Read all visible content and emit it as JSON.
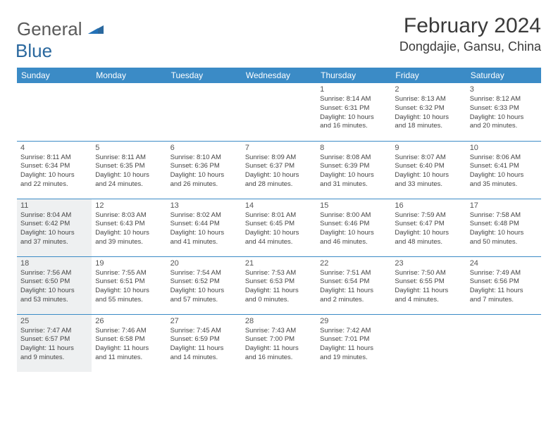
{
  "logo": {
    "gray": "General",
    "blue": "Blue"
  },
  "header": {
    "title": "February 2024",
    "location": "Dongdajie, Gansu, China"
  },
  "colors": {
    "header_bg": "#3b8bc6",
    "header_text": "#ffffff",
    "shaded_bg": "#eef0f1",
    "border": "#3b8bc6",
    "logo_gray": "#5a5a5a",
    "logo_blue": "#2a689e"
  },
  "weekdays": [
    "Sunday",
    "Monday",
    "Tuesday",
    "Wednesday",
    "Thursday",
    "Friday",
    "Saturday"
  ],
  "weeks": [
    [
      {
        "blank": true
      },
      {
        "blank": true
      },
      {
        "blank": true
      },
      {
        "blank": true
      },
      {
        "num": "1",
        "sunrise": "Sunrise: 8:14 AM",
        "sunset": "Sunset: 6:31 PM",
        "day1": "Daylight: 10 hours",
        "day2": "and 16 minutes."
      },
      {
        "num": "2",
        "sunrise": "Sunrise: 8:13 AM",
        "sunset": "Sunset: 6:32 PM",
        "day1": "Daylight: 10 hours",
        "day2": "and 18 minutes."
      },
      {
        "num": "3",
        "sunrise": "Sunrise: 8:12 AM",
        "sunset": "Sunset: 6:33 PM",
        "day1": "Daylight: 10 hours",
        "day2": "and 20 minutes."
      }
    ],
    [
      {
        "num": "4",
        "sunrise": "Sunrise: 8:11 AM",
        "sunset": "Sunset: 6:34 PM",
        "day1": "Daylight: 10 hours",
        "day2": "and 22 minutes."
      },
      {
        "num": "5",
        "sunrise": "Sunrise: 8:11 AM",
        "sunset": "Sunset: 6:35 PM",
        "day1": "Daylight: 10 hours",
        "day2": "and 24 minutes."
      },
      {
        "num": "6",
        "sunrise": "Sunrise: 8:10 AM",
        "sunset": "Sunset: 6:36 PM",
        "day1": "Daylight: 10 hours",
        "day2": "and 26 minutes."
      },
      {
        "num": "7",
        "sunrise": "Sunrise: 8:09 AM",
        "sunset": "Sunset: 6:37 PM",
        "day1": "Daylight: 10 hours",
        "day2": "and 28 minutes."
      },
      {
        "num": "8",
        "sunrise": "Sunrise: 8:08 AM",
        "sunset": "Sunset: 6:39 PM",
        "day1": "Daylight: 10 hours",
        "day2": "and 31 minutes."
      },
      {
        "num": "9",
        "sunrise": "Sunrise: 8:07 AM",
        "sunset": "Sunset: 6:40 PM",
        "day1": "Daylight: 10 hours",
        "day2": "and 33 minutes."
      },
      {
        "num": "10",
        "sunrise": "Sunrise: 8:06 AM",
        "sunset": "Sunset: 6:41 PM",
        "day1": "Daylight: 10 hours",
        "day2": "and 35 minutes."
      }
    ],
    [
      {
        "num": "11",
        "shaded": true,
        "sunrise": "Sunrise: 8:04 AM",
        "sunset": "Sunset: 6:42 PM",
        "day1": "Daylight: 10 hours",
        "day2": "and 37 minutes."
      },
      {
        "num": "12",
        "sunrise": "Sunrise: 8:03 AM",
        "sunset": "Sunset: 6:43 PM",
        "day1": "Daylight: 10 hours",
        "day2": "and 39 minutes."
      },
      {
        "num": "13",
        "sunrise": "Sunrise: 8:02 AM",
        "sunset": "Sunset: 6:44 PM",
        "day1": "Daylight: 10 hours",
        "day2": "and 41 minutes."
      },
      {
        "num": "14",
        "sunrise": "Sunrise: 8:01 AM",
        "sunset": "Sunset: 6:45 PM",
        "day1": "Daylight: 10 hours",
        "day2": "and 44 minutes."
      },
      {
        "num": "15",
        "sunrise": "Sunrise: 8:00 AM",
        "sunset": "Sunset: 6:46 PM",
        "day1": "Daylight: 10 hours",
        "day2": "and 46 minutes."
      },
      {
        "num": "16",
        "sunrise": "Sunrise: 7:59 AM",
        "sunset": "Sunset: 6:47 PM",
        "day1": "Daylight: 10 hours",
        "day2": "and 48 minutes."
      },
      {
        "num": "17",
        "sunrise": "Sunrise: 7:58 AM",
        "sunset": "Sunset: 6:48 PM",
        "day1": "Daylight: 10 hours",
        "day2": "and 50 minutes."
      }
    ],
    [
      {
        "num": "18",
        "shaded": true,
        "sunrise": "Sunrise: 7:56 AM",
        "sunset": "Sunset: 6:50 PM",
        "day1": "Daylight: 10 hours",
        "day2": "and 53 minutes."
      },
      {
        "num": "19",
        "sunrise": "Sunrise: 7:55 AM",
        "sunset": "Sunset: 6:51 PM",
        "day1": "Daylight: 10 hours",
        "day2": "and 55 minutes."
      },
      {
        "num": "20",
        "sunrise": "Sunrise: 7:54 AM",
        "sunset": "Sunset: 6:52 PM",
        "day1": "Daylight: 10 hours",
        "day2": "and 57 minutes."
      },
      {
        "num": "21",
        "sunrise": "Sunrise: 7:53 AM",
        "sunset": "Sunset: 6:53 PM",
        "day1": "Daylight: 11 hours",
        "day2": "and 0 minutes."
      },
      {
        "num": "22",
        "sunrise": "Sunrise: 7:51 AM",
        "sunset": "Sunset: 6:54 PM",
        "day1": "Daylight: 11 hours",
        "day2": "and 2 minutes."
      },
      {
        "num": "23",
        "sunrise": "Sunrise: 7:50 AM",
        "sunset": "Sunset: 6:55 PM",
        "day1": "Daylight: 11 hours",
        "day2": "and 4 minutes."
      },
      {
        "num": "24",
        "sunrise": "Sunrise: 7:49 AM",
        "sunset": "Sunset: 6:56 PM",
        "day1": "Daylight: 11 hours",
        "day2": "and 7 minutes."
      }
    ],
    [
      {
        "num": "25",
        "shaded": true,
        "sunrise": "Sunrise: 7:47 AM",
        "sunset": "Sunset: 6:57 PM",
        "day1": "Daylight: 11 hours",
        "day2": "and 9 minutes."
      },
      {
        "num": "26",
        "sunrise": "Sunrise: 7:46 AM",
        "sunset": "Sunset: 6:58 PM",
        "day1": "Daylight: 11 hours",
        "day2": "and 11 minutes."
      },
      {
        "num": "27",
        "sunrise": "Sunrise: 7:45 AM",
        "sunset": "Sunset: 6:59 PM",
        "day1": "Daylight: 11 hours",
        "day2": "and 14 minutes."
      },
      {
        "num": "28",
        "sunrise": "Sunrise: 7:43 AM",
        "sunset": "Sunset: 7:00 PM",
        "day1": "Daylight: 11 hours",
        "day2": "and 16 minutes."
      },
      {
        "num": "29",
        "sunrise": "Sunrise: 7:42 AM",
        "sunset": "Sunset: 7:01 PM",
        "day1": "Daylight: 11 hours",
        "day2": "and 19 minutes."
      },
      {
        "blank": true
      },
      {
        "blank": true
      }
    ]
  ]
}
